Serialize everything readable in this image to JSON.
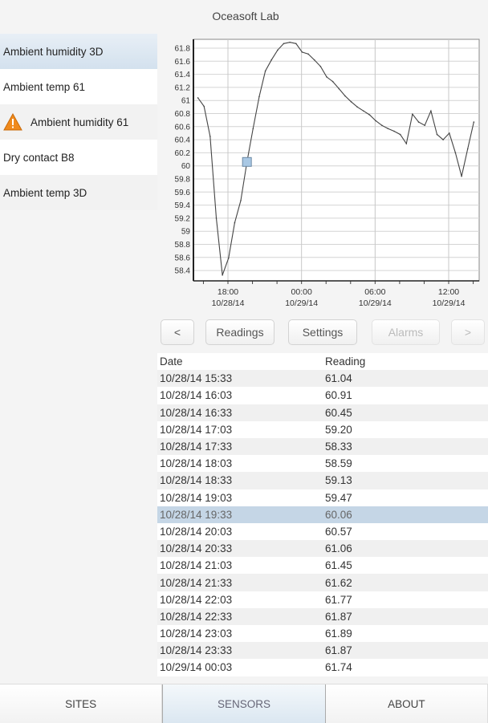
{
  "header": {
    "title": "Oceasoft Lab"
  },
  "sidebar": {
    "items": [
      {
        "label": "Ambient humidity 3D",
        "selected": true,
        "warning": false
      },
      {
        "label": "Ambient temp 61",
        "selected": false,
        "warning": false
      },
      {
        "label": "Ambient humidity 61",
        "selected": false,
        "warning": true
      },
      {
        "label": "Dry contact B8",
        "selected": false,
        "warning": false
      },
      {
        "label": "Ambient temp 3D",
        "selected": false,
        "warning": false
      }
    ]
  },
  "toolbar": {
    "prev": "<",
    "readings": "Readings",
    "settings": "Settings",
    "alarms": "Alarms",
    "next": ">"
  },
  "table": {
    "headers": [
      "Date",
      "Reading"
    ],
    "selected_index": 8,
    "rows": [
      [
        "10/28/14 15:33",
        "61.04"
      ],
      [
        "10/28/14 16:03",
        "60.91"
      ],
      [
        "10/28/14 16:33",
        "60.45"
      ],
      [
        "10/28/14 17:03",
        "59.20"
      ],
      [
        "10/28/14 17:33",
        "58.33"
      ],
      [
        "10/28/14 18:03",
        "58.59"
      ],
      [
        "10/28/14 18:33",
        "59.13"
      ],
      [
        "10/28/14 19:03",
        "59.47"
      ],
      [
        "10/28/14 19:33",
        "60.06"
      ],
      [
        "10/28/14 20:03",
        "60.57"
      ],
      [
        "10/28/14 20:33",
        "61.06"
      ],
      [
        "10/28/14 21:03",
        "61.45"
      ],
      [
        "10/28/14 21:33",
        "61.62"
      ],
      [
        "10/28/14 22:03",
        "61.77"
      ],
      [
        "10/28/14 22:33",
        "61.87"
      ],
      [
        "10/28/14 23:03",
        "61.89"
      ],
      [
        "10/28/14 23:33",
        "61.87"
      ],
      [
        "10/29/14 00:03",
        "61.74"
      ]
    ]
  },
  "tabs": [
    {
      "label": "SITES"
    },
    {
      "label": "SENSORS",
      "active": true
    },
    {
      "label": "ABOUT"
    }
  ],
  "colors": {
    "accent": "#c5d6e6",
    "marker": "#a9c8e4",
    "warning": "#f08a1c"
  },
  "chart_data": {
    "type": "line",
    "ylim": [
      58.3,
      61.9
    ],
    "yticks": [
      "58.4",
      "58.6",
      "58.8",
      "59",
      "59.2",
      "59.4",
      "59.6",
      "59.8",
      "60",
      "60.2",
      "60.4",
      "60.6",
      "60.8",
      "61",
      "61.2",
      "61.4",
      "61.6",
      "61.8"
    ],
    "xticks": [
      {
        "time": "18:00",
        "date": "10/28/14"
      },
      {
        "time": "00:00",
        "date": "10/29/14"
      },
      {
        "time": "06:00",
        "date": "10/29/14"
      },
      {
        "time": "12:00",
        "date": "10/29/14"
      }
    ],
    "grid": true,
    "highlight": {
      "x": "10/28/14 19:33",
      "y": 60.06
    },
    "x": [
      "10/28/14 15:33",
      "10/28/14 16:03",
      "10/28/14 16:33",
      "10/28/14 17:03",
      "10/28/14 17:33",
      "10/28/14 18:03",
      "10/28/14 18:33",
      "10/28/14 19:03",
      "10/28/14 19:33",
      "10/28/14 20:03",
      "10/28/14 20:33",
      "10/28/14 21:03",
      "10/28/14 21:33",
      "10/28/14 22:03",
      "10/28/14 22:33",
      "10/28/14 23:03",
      "10/28/14 23:33",
      "10/29/14 00:03",
      "10/29/14 00:33",
      "10/29/14 01:03",
      "10/29/14 01:33",
      "10/29/14 02:03",
      "10/29/14 02:33",
      "10/29/14 03:03",
      "10/29/14 03:33",
      "10/29/14 04:03",
      "10/29/14 04:33",
      "10/29/14 05:03",
      "10/29/14 05:33",
      "10/29/14 06:03",
      "10/29/14 06:33",
      "10/29/14 07:03",
      "10/29/14 07:33",
      "10/29/14 08:03",
      "10/29/14 08:33",
      "10/29/14 09:03",
      "10/29/14 09:33",
      "10/29/14 10:03",
      "10/29/14 10:33",
      "10/29/14 11:03",
      "10/29/14 11:33",
      "10/29/14 12:03",
      "10/29/14 12:33",
      "10/29/14 13:03",
      "10/29/14 13:33",
      "10/29/14 14:03"
    ],
    "y": [
      61.04,
      60.91,
      60.45,
      59.2,
      58.33,
      58.59,
      59.13,
      59.47,
      60.06,
      60.57,
      61.06,
      61.45,
      61.62,
      61.77,
      61.87,
      61.89,
      61.87,
      61.74,
      61.71,
      61.62,
      61.52,
      61.36,
      61.29,
      61.18,
      61.07,
      60.98,
      60.9,
      60.84,
      60.78,
      60.69,
      60.62,
      60.57,
      60.53,
      60.48,
      60.34,
      60.79,
      60.67,
      60.62,
      60.84,
      60.48,
      60.4,
      60.5,
      60.2,
      59.84,
      60.26,
      60.67
    ]
  }
}
